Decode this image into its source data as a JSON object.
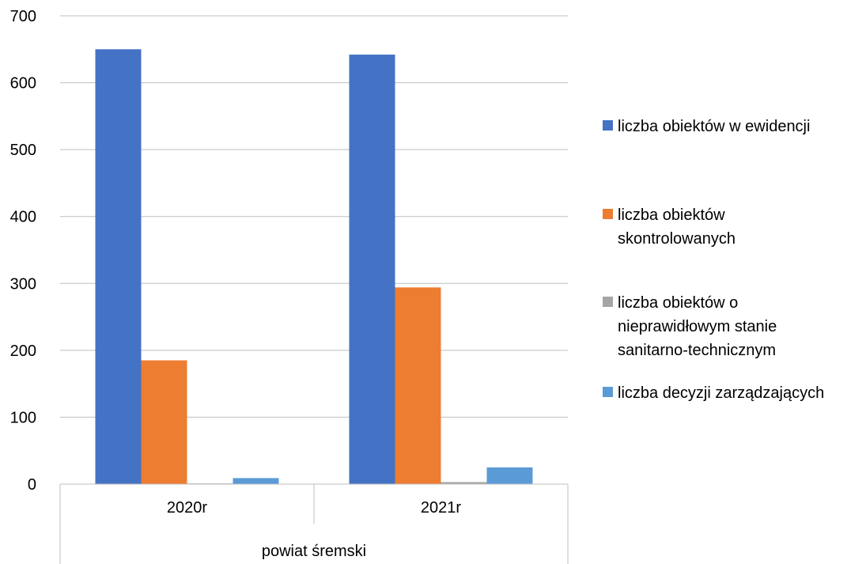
{
  "chart_data": {
    "type": "bar",
    "categories": [
      "2020r",
      "2021r"
    ],
    "group_label": "powiat śremski",
    "ylim": [
      0,
      700
    ],
    "yticks": [
      0,
      100,
      200,
      300,
      400,
      500,
      600,
      700
    ],
    "grid": true,
    "legend_position": "right",
    "series": [
      {
        "name": "liczba obiektów w ewidencji",
        "color": "#4472C4",
        "values": [
          650,
          642
        ]
      },
      {
        "name": "liczba obiektów skontrolowanych",
        "color": "#ED7D31",
        "values": [
          185,
          294
        ]
      },
      {
        "name": "liczba obiektów o nieprawidłowym stanie sanitarno-technicznym",
        "color": "#A5A5A5",
        "values": [
          1,
          3
        ]
      },
      {
        "name": "liczba decyzji zarządzających",
        "color": "#5B9BD5",
        "values": [
          9,
          25
        ]
      }
    ]
  },
  "legend": {
    "items": [
      {
        "label": "liczba obiektów w ewidencji",
        "color": "#4472C4"
      },
      {
        "label": "liczba obiektów\nskontrolowanych",
        "color": "#ED7D31"
      },
      {
        "label": "liczba obiektów o\nnieprawidłowym stanie\nsanitarno-technicznym",
        "color": "#A5A5A5"
      },
      {
        "label": "liczba decyzji zarządzających",
        "color": "#5B9BD5"
      }
    ]
  }
}
